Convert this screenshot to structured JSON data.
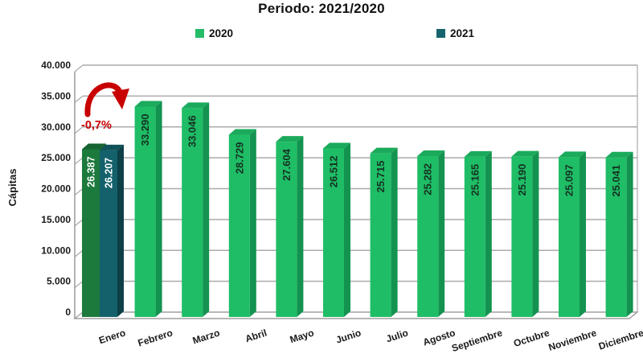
{
  "title": "Periodo: 2021/2020",
  "legend": [
    {
      "label": "2020",
      "color": "#24BC68"
    },
    {
      "label": "2021",
      "color": "#17646E"
    }
  ],
  "chart_data": {
    "type": "bar",
    "title": "Periodo: 2021/2020",
    "ylabel": "Cápitas",
    "xlabel": "",
    "grid": true,
    "legend_position": "top",
    "ylim": [
      0,
      40000
    ],
    "yticks": [
      0,
      5000,
      10000,
      15000,
      20000,
      25000,
      30000,
      35000,
      40000
    ],
    "ytick_labels": [
      "0",
      "5.000",
      "10.000",
      "15.000",
      "20.000",
      "25.000",
      "30.000",
      "35.000",
      "40.000"
    ],
    "categories": [
      "Enero",
      "Febrero",
      "Marzo",
      "Abril",
      "Mayo",
      "Junio",
      "Julio",
      "Agosto",
      "Septiembre",
      "Octubre",
      "Noviembre",
      "Diciembre"
    ],
    "series": [
      {
        "name": "2020",
        "values": [
          26387,
          33290,
          33046,
          28729,
          27604,
          26512,
          25715,
          25282,
          25165,
          25190,
          25097,
          25041
        ],
        "labels": [
          "26.387",
          "33.290",
          "33.046",
          "28.729",
          "27.604",
          "26.512",
          "25.715",
          "25.282",
          "25.165",
          "25.190",
          "25.097",
          "25.041"
        ]
      },
      {
        "name": "2021",
        "values": [
          26207,
          null,
          null,
          null,
          null,
          null,
          null,
          null,
          null,
          null,
          null,
          null
        ],
        "labels": [
          "26.207",
          null,
          null,
          null,
          null,
          null,
          null,
          null,
          null,
          null,
          null,
          null
        ]
      }
    ],
    "annotation": {
      "text": "-0,7%",
      "target": "Enero"
    },
    "colors": {
      "bar_2020_face": "#1FBD66",
      "bar_2020_side": "#149350",
      "bar_2020_top": "#1BAA5C",
      "bar_enero_2020_face": "#1C7A3C",
      "bar_enero_2020_side": "#115427",
      "bar_enero_2020_top": "#166331",
      "bar_2021_face": "#14616B",
      "bar_2021_side": "#0C3F47",
      "bar_2021_top": "#10525A",
      "value_label_dark": "#143322",
      "value_label_light": "#FFFFFF",
      "grid": "#ABABAB",
      "axis": "#8C8C8C",
      "annotation_red": "#C80000",
      "text": "#1A1A1A"
    }
  }
}
